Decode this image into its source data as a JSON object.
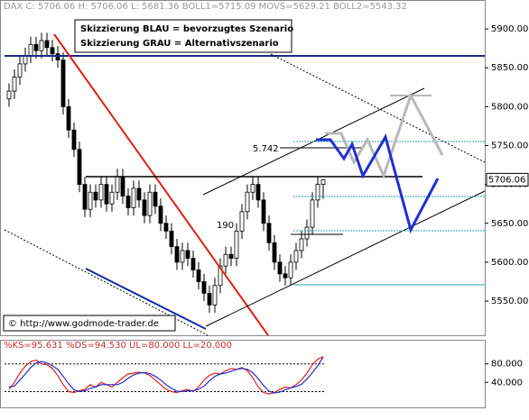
{
  "chart_data": [
    {
      "type": "candlestick",
      "title": "DAX C: 5706.06 H: 5706.06 L: 5681.36 BOLL1=5715.09 MOVS=5629.21 BOLL2=5543.32",
      "annotations": [
        "Skizzierung BLAU = bevorzugtes Szenario",
        "Skizzierung GRAU = Alternativszenario",
        "5.742",
        "190",
        "© http://www.godmode-trader.de"
      ],
      "last_price": 5706.06,
      "last_price_label": "5706.06",
      "open": [
        5810,
        5820,
        5838,
        5855,
        5866,
        5880,
        5872,
        5885,
        5876,
        5868,
        5860,
        5800,
        5770,
        5745,
        5700,
        5668,
        5690,
        5680,
        5700,
        5675,
        5690,
        5710,
        5685,
        5670,
        5695,
        5680,
        5660,
        5690,
        5672,
        5650,
        5640,
        5620,
        5600,
        5615,
        5605,
        5590,
        5575,
        5560,
        5545,
        5570,
        5595,
        5610,
        5605,
        5640,
        5665,
        5690,
        5700,
        5680,
        5650,
        5625,
        5600,
        5585,
        5580,
        5600,
        5615,
        5630,
        5645,
        5680,
        5700
      ],
      "high": [
        5830,
        5848,
        5865,
        5876,
        5890,
        5890,
        5895,
        5895,
        5886,
        5878,
        5870,
        5810,
        5780,
        5755,
        5710,
        5700,
        5700,
        5710,
        5710,
        5700,
        5720,
        5720,
        5695,
        5705,
        5705,
        5690,
        5700,
        5700,
        5682,
        5660,
        5650,
        5630,
        5625,
        5625,
        5615,
        5600,
        5585,
        5570,
        5580,
        5605,
        5620,
        5620,
        5650,
        5675,
        5700,
        5710,
        5710,
        5690,
        5660,
        5635,
        5610,
        5595,
        5610,
        5625,
        5640,
        5655,
        5690,
        5710,
        5706.06
      ],
      "low": [
        5800,
        5810,
        5828,
        5845,
        5856,
        5862,
        5862,
        5866,
        5858,
        5850,
        5790,
        5760,
        5735,
        5690,
        5658,
        5658,
        5670,
        5670,
        5665,
        5665,
        5680,
        5675,
        5660,
        5660,
        5670,
        5650,
        5650,
        5662,
        5640,
        5630,
        5610,
        5590,
        5590,
        5595,
        5580,
        5565,
        5550,
        5535,
        5535,
        5560,
        5585,
        5595,
        5595,
        5630,
        5655,
        5680,
        5670,
        5640,
        5615,
        5590,
        5575,
        5570,
        5570,
        5590,
        5605,
        5620,
        5635,
        5670,
        5681.36
      ],
      "close": [
        5820,
        5838,
        5855,
        5866,
        5880,
        5872,
        5885,
        5876,
        5868,
        5860,
        5800,
        5770,
        5745,
        5700,
        5668,
        5690,
        5680,
        5700,
        5675,
        5690,
        5710,
        5685,
        5670,
        5695,
        5680,
        5660,
        5690,
        5672,
        5650,
        5640,
        5620,
        5600,
        5615,
        5605,
        5590,
        5575,
        5560,
        5545,
        5570,
        5595,
        5610,
        5605,
        5640,
        5665,
        5690,
        5700,
        5680,
        5650,
        5625,
        5600,
        5585,
        5580,
        5600,
        5615,
        5630,
        5645,
        5680,
        5700,
        5706.06
      ],
      "ylim": [
        5506,
        5936
      ],
      "yticks": [
        {
          "value": 5900,
          "label": "5900.00"
        },
        {
          "value": 5850,
          "label": "5850.00"
        },
        {
          "value": 5800,
          "label": "5800.00"
        },
        {
          "value": 5750,
          "label": "5750.00"
        },
        {
          "value": 5700,
          "label": "5700.00"
        },
        {
          "value": 5650,
          "label": "5650.00"
        },
        {
          "value": 5600,
          "label": "5600.00"
        },
        {
          "value": 5550,
          "label": "5550.00"
        }
      ]
    },
    {
      "type": "line",
      "title": "%KS=95.631 %DS=94.530 UL=80.000 LL=20.000",
      "upper_line": 80,
      "lower_line": 20,
      "series": [
        {
          "name": "%KS",
          "color": "#e02020",
          "values": [
            25,
            40,
            60,
            75,
            85,
            88,
            80,
            78,
            70,
            55,
            35,
            20,
            18,
            22,
            25,
            35,
            30,
            40,
            35,
            30,
            40,
            50,
            58,
            60,
            62,
            60,
            55,
            45,
            35,
            25,
            20,
            18,
            22,
            25,
            20,
            30,
            45,
            55,
            60,
            58,
            65,
            70,
            68,
            72,
            65,
            50,
            30,
            18,
            15,
            18,
            25,
            30,
            28,
            35,
            45,
            60,
            78,
            90,
            95.631
          ]
        },
        {
          "name": "%DS",
          "color": "#2030d0",
          "values": [
            30,
            32,
            45,
            58,
            72,
            82,
            85,
            82,
            76,
            68,
            53,
            37,
            24,
            20,
            22,
            27,
            30,
            35,
            35,
            35,
            35,
            40,
            49,
            56,
            60,
            61,
            59,
            53,
            45,
            35,
            27,
            21,
            20,
            22,
            22,
            25,
            32,
            43,
            53,
            58,
            60,
            64,
            68,
            70,
            68,
            61,
            48,
            33,
            21,
            17,
            19,
            24,
            28,
            31,
            36,
            47,
            61,
            76,
            94.53
          ]
        }
      ],
      "ylim": [
        -14,
        130
      ],
      "yticks": [
        {
          "value": 80,
          "label": "80.000"
        },
        {
          "value": 40,
          "label": "40.000"
        }
      ]
    }
  ]
}
